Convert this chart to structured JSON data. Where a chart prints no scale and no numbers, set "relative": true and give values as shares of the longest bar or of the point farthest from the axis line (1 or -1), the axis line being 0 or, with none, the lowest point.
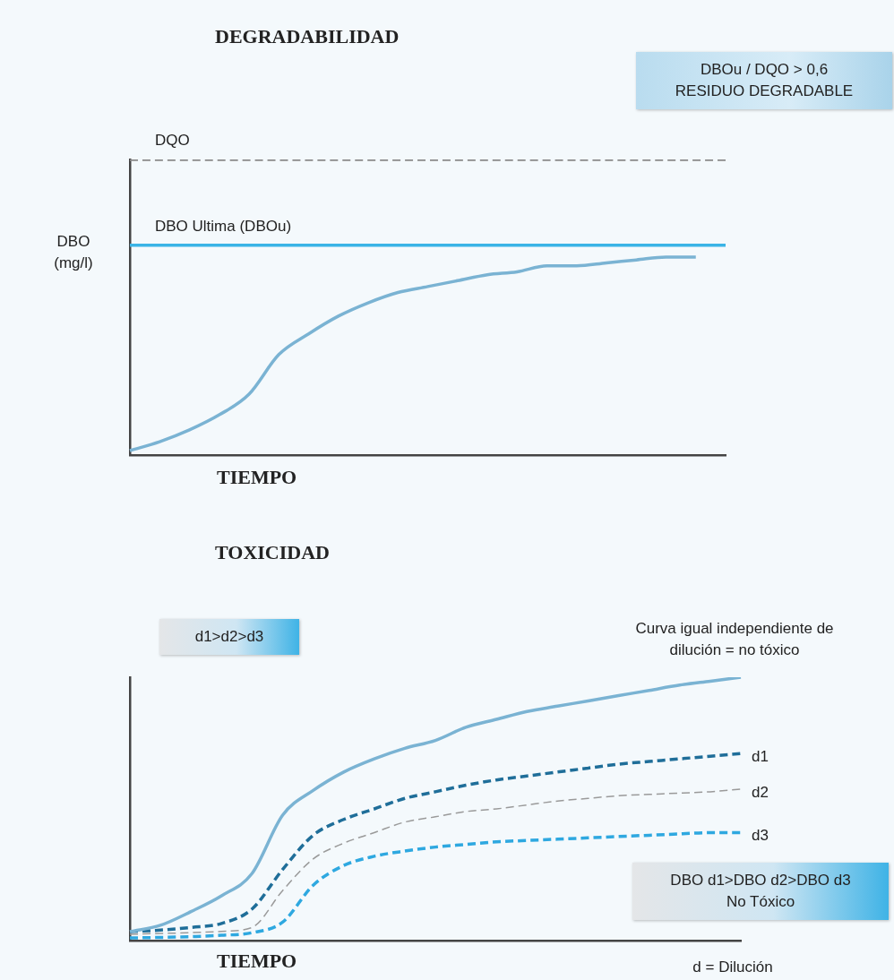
{
  "chart_data": [
    {
      "type": "line",
      "title": "DEGRADABILIDAD",
      "xlabel": "TIEMPO",
      "ylabel": "DBO (mg/l)",
      "relative": true,
      "legend": false,
      "grid": false,
      "categories": [
        null,
        null,
        null,
        null,
        null,
        null,
        null,
        null,
        null,
        null,
        null,
        null,
        null,
        null,
        null,
        null,
        null,
        null,
        null,
        null,
        null
      ],
      "series": [
        {
          "name": "DQO",
          "color": "#8a8a8a",
          "line_style": "dashed",
          "values": [
            1,
            1,
            1,
            1,
            1,
            1,
            1,
            1,
            1,
            1,
            1,
            1,
            1,
            1,
            1,
            1,
            1,
            1,
            1,
            1,
            1
          ]
        },
        {
          "name": "DBO Ultima (DBOu)",
          "color": "#3ab4e6",
          "line_style": "solid",
          "values": [
            0.71,
            0.71,
            0.71,
            0.71,
            0.71,
            0.71,
            0.71,
            0.71,
            0.71,
            0.71,
            0.71,
            0.71,
            0.71,
            0.71,
            0.71,
            0.71,
            0.71,
            0.71,
            0.71,
            0.71,
            0.71
          ]
        },
        {
          "color": "#7ab3d3",
          "line_style": "solid",
          "values": [
            0.015,
            0.045,
            0.085,
            0.136,
            0.206,
            0.34,
            0.41,
            0.47,
            0.515,
            0.55,
            0.57,
            0.59,
            0.61,
            0.62,
            0.64,
            0.64,
            0.65,
            0.66,
            0.67,
            0.67,
            null
          ]
        }
      ],
      "annotations": [
        "DBOu / DQO > 0,6\nRESIDUO DEGRADABLE"
      ]
    },
    {
      "type": "line",
      "title": "TOXICIDAD",
      "xlabel": "TIEMPO",
      "relative": true,
      "legend": false,
      "grid": false,
      "categories": [
        null,
        null,
        null,
        null,
        null,
        null,
        null,
        null,
        null,
        null,
        null,
        null,
        null,
        null,
        null,
        null,
        null,
        null,
        null,
        null,
        null
      ],
      "series": [
        {
          "color": "#7ab3d3",
          "line_style": "solid",
          "values": [
            0.034,
            0.058,
            0.11,
            0.17,
            0.255,
            0.476,
            0.57,
            0.64,
            0.69,
            0.73,
            0.76,
            0.81,
            0.84,
            0.87,
            0.89,
            0.91,
            0.93,
            0.95,
            0.97,
            0.985,
            1
          ]
        },
        {
          "name": "d1",
          "color": "#1f6e99",
          "line_style": "dashed",
          "values": [
            0.034,
            0.04,
            0.05,
            0.065,
            0.12,
            0.27,
            0.4,
            0.46,
            0.5,
            0.54,
            0.565,
            0.59,
            0.61,
            0.625,
            0.64,
            0.655,
            0.67,
            0.68,
            0.69,
            0.7,
            0.71
          ]
        },
        {
          "name": "d2",
          "color": "#9a9a9a",
          "line_style": "dashed",
          "values": [
            0.024,
            0.027,
            0.03,
            0.035,
            0.05,
            0.19,
            0.31,
            0.37,
            0.41,
            0.45,
            0.47,
            0.49,
            0.5,
            0.515,
            0.53,
            0.54,
            0.55,
            0.555,
            0.56,
            0.565,
            0.575
          ]
        },
        {
          "name": "d3",
          "color": "#2ea8e0",
          "line_style": "dashed",
          "values": [
            0.01,
            0.012,
            0.015,
            0.02,
            0.03,
            0.07,
            0.21,
            0.285,
            0.32,
            0.34,
            0.355,
            0.365,
            0.375,
            0.38,
            0.385,
            0.39,
            0.395,
            0.4,
            0.405,
            0.41,
            0.41
          ]
        }
      ],
      "annotations": [
        "d1>d2>d3",
        "Curva igual independiente de\ndilución = no tóxico",
        "DBO d1>DBO d2>DBO d3\nNo Tóxico",
        "d = Dilución"
      ]
    }
  ]
}
